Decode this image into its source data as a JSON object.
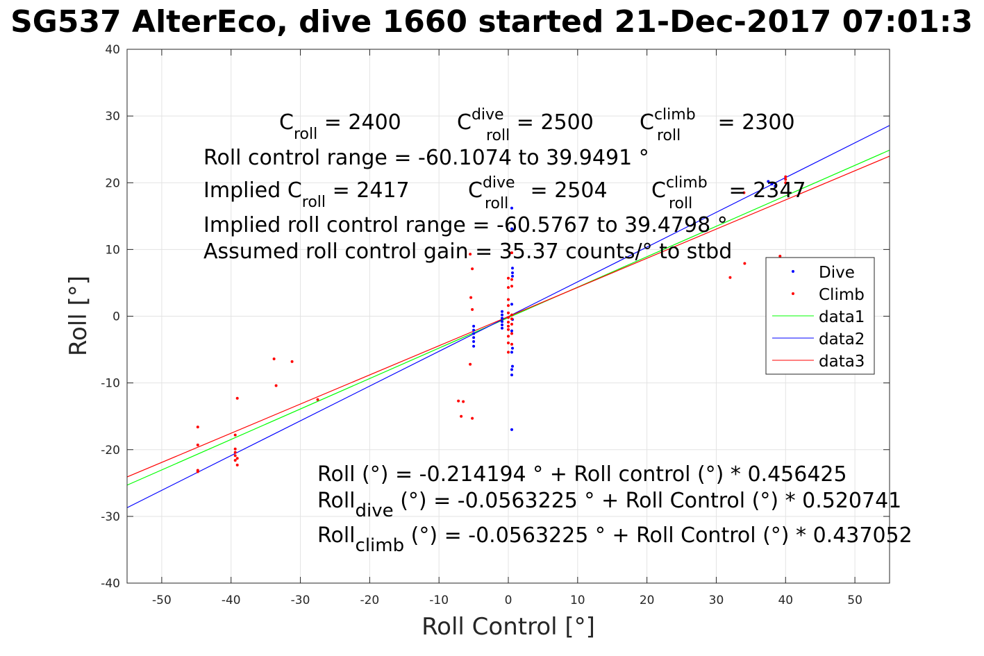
{
  "chart_data": {
    "type": "scatter",
    "title": "SG537 AlterEco, dive 1660 started 21-Dec-2017 07:01:3",
    "xlabel": "Roll Control [°]",
    "ylabel": "Roll [°]",
    "xlim": [
      -55,
      55
    ],
    "ylim": [
      -40,
      40
    ],
    "xticks": [
      -50,
      -40,
      -30,
      -20,
      -10,
      0,
      10,
      20,
      30,
      40,
      50
    ],
    "yticks": [
      -40,
      -30,
      -20,
      -10,
      0,
      10,
      20,
      30,
      40
    ],
    "xtick_labels": [
      "-50",
      "-40",
      "-30",
      "-20",
      "-10",
      "0",
      "10",
      "20",
      "30",
      "40",
      "50"
    ],
    "ytick_labels": [
      "-40",
      "-30",
      "-20",
      "-10",
      "0",
      "10",
      "20",
      "30",
      "40"
    ],
    "grid": true,
    "legend_position": "right",
    "colors": {
      "dive": "#0000ff",
      "climb": "#ff0000",
      "data1": "#00ff00",
      "data2": "#0000ff",
      "data3": "#ff0000"
    },
    "series": [
      {
        "name": "Dive",
        "kind": "points",
        "color": "#0000ff",
        "points": [
          [
            0.5,
            16.2
          ],
          [
            0.5,
            13.1
          ],
          [
            0.6,
            7.2
          ],
          [
            0.6,
            6.5
          ],
          [
            0.6,
            6.0
          ],
          [
            0.5,
            1.8
          ],
          [
            0.6,
            -0.5
          ],
          [
            0.5,
            -2.2
          ],
          [
            0.6,
            -4.8
          ],
          [
            0.5,
            -5.4
          ],
          [
            0.6,
            -7.5
          ],
          [
            0.5,
            -8.0
          ],
          [
            0.5,
            -8.8
          ],
          [
            0.5,
            -17.0
          ],
          [
            -0.9,
            0.7
          ],
          [
            -0.9,
            0.2
          ],
          [
            -0.9,
            -0.3
          ],
          [
            -0.9,
            -0.8
          ],
          [
            -0.9,
            -1.3
          ],
          [
            -0.9,
            -1.8
          ],
          [
            -5.0,
            -1.5
          ],
          [
            -5.0,
            -2.1
          ],
          [
            -5.0,
            -2.6
          ],
          [
            -5.0,
            -3.2
          ],
          [
            -5.0,
            -3.8
          ],
          [
            -5.0,
            -4.5
          ],
          [
            37.5,
            20.2
          ],
          [
            38.0,
            19.8
          ],
          [
            38.5,
            19.5
          ]
        ]
      },
      {
        "name": "Climb",
        "kind": "points",
        "color": "#ff0000",
        "points": [
          [
            -44.8,
            -16.6
          ],
          [
            -44.8,
            -19.3
          ],
          [
            -44.8,
            -23.1
          ],
          [
            -44.8,
            -23.3
          ],
          [
            -39.4,
            -17.8
          ],
          [
            -39.4,
            -19.9
          ],
          [
            -39.4,
            -20.4
          ],
          [
            -39.4,
            -20.9
          ],
          [
            -39.1,
            -21.3
          ],
          [
            -39.4,
            -21.6
          ],
          [
            -39.1,
            -22.3
          ],
          [
            -39.1,
            -12.3
          ],
          [
            -33.8,
            -6.4
          ],
          [
            -33.5,
            -10.4
          ],
          [
            -31.2,
            -6.8
          ],
          [
            -27.5,
            -12.5
          ],
          [
            -7.2,
            -12.7
          ],
          [
            -6.5,
            -12.8
          ],
          [
            -6.8,
            -15.0
          ],
          [
            -5.2,
            -15.3
          ],
          [
            -5.5,
            -7.2
          ],
          [
            -5.4,
            2.8
          ],
          [
            -5.2,
            1.0
          ],
          [
            -5.2,
            7.1
          ],
          [
            -5.5,
            9.3
          ],
          [
            0.0,
            5.7
          ],
          [
            0.0,
            4.3
          ],
          [
            0.0,
            2.5
          ],
          [
            0.0,
            1.6
          ],
          [
            0.0,
            0.5
          ],
          [
            0.0,
            -0.2
          ],
          [
            0.0,
            -0.9
          ],
          [
            0.0,
            -1.5
          ],
          [
            0.0,
            -2.0
          ],
          [
            0.0,
            -3.0
          ],
          [
            0.0,
            -4.0
          ],
          [
            0.0,
            -5.4
          ],
          [
            0.5,
            9.5
          ],
          [
            0.5,
            5.5
          ],
          [
            0.5,
            4.5
          ],
          [
            0.5,
            0.2
          ],
          [
            0.5,
            -0.4
          ],
          [
            0.5,
            -1.2
          ],
          [
            0.5,
            -2.6
          ],
          [
            0.5,
            -4.2
          ],
          [
            32.0,
            5.8
          ],
          [
            34.1,
            7.9
          ],
          [
            34.0,
            18.5
          ],
          [
            39.2,
            9.0
          ],
          [
            40.0,
            20.9
          ],
          [
            40.0,
            20.5
          ],
          [
            40.0,
            20.0
          ]
        ]
      },
      {
        "name": "data1",
        "kind": "line",
        "color": "#00ff00",
        "x": [
          -55,
          55
        ],
        "y": [
          -25.317569,
          24.888181
        ]
      },
      {
        "name": "data2",
        "kind": "line",
        "color": "#0000ff",
        "x": [
          -55,
          55
        ],
        "y": [
          -28.69708,
          28.584838
        ]
      },
      {
        "name": "data3",
        "kind": "line",
        "color": "#ff0000",
        "x": [
          -55,
          55
        ],
        "y": [
          -24.094183,
          23.981538
        ]
      }
    ],
    "annotations": {
      "line1": {
        "c1": {
          "base": "C",
          "sub": "roll",
          "value": " = 2400"
        },
        "c2": {
          "base": "C",
          "sup": "dive",
          "sub": "roll",
          "value": " = 2500"
        },
        "c3": {
          "base": "C",
          "sup": "climb",
          "sub": "roll",
          "value": " = 2300"
        }
      },
      "range": "Roll control range = -60.1074 to 39.9491 °",
      "implied": {
        "c1": {
          "prefix": "Implied C",
          "sub": "roll",
          "value": " = 2417"
        },
        "c2": {
          "base": "C",
          "sup": "dive",
          "sub": "roll",
          "value": " = 2504"
        },
        "c3": {
          "base": "C",
          "sup": "climb",
          "sub": "roll",
          "value": " = 2347"
        }
      },
      "implied_range": "Implied roll control range = -60.5767 to 39.4798 °",
      "gain": "Assumed roll control gain = 35.37 counts/° to stbd",
      "fit1": "Roll (°) = -0.214194 ° + Roll control (°) * 0.456425",
      "fit2": {
        "base": "Roll",
        "sub": "dive",
        "rest": " (°) = -0.0563225 ° + Roll Control (°) * 0.520741"
      },
      "fit3": {
        "base": "Roll",
        "sub": "climb",
        "rest": " (°) = -0.0563225 ° + Roll Control (°) * 0.437052"
      }
    }
  }
}
